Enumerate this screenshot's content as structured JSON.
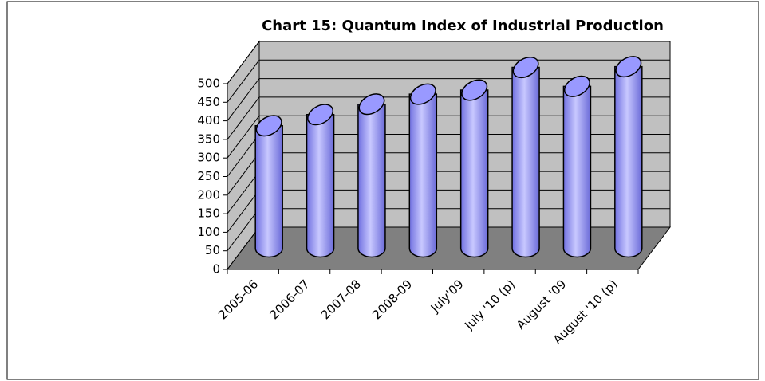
{
  "chart_data": {
    "type": "bar3d",
    "title": "Chart 15: Quantum Index of Industrial Production",
    "categories": [
      "2005-06",
      "2006-07",
      "2007-08",
      "2008-09",
      "July'09",
      "July '10 (p)",
      "August '09",
      "August '10 (p)"
    ],
    "values": [
      330,
      360,
      388,
      415,
      426,
      487,
      436,
      489
    ],
    "color": "#9999ff",
    "ylim": [
      0,
      500
    ],
    "yticks": [
      0,
      50,
      100,
      150,
      200,
      250,
      300,
      350,
      400,
      450,
      500
    ],
    "grid": true
  }
}
